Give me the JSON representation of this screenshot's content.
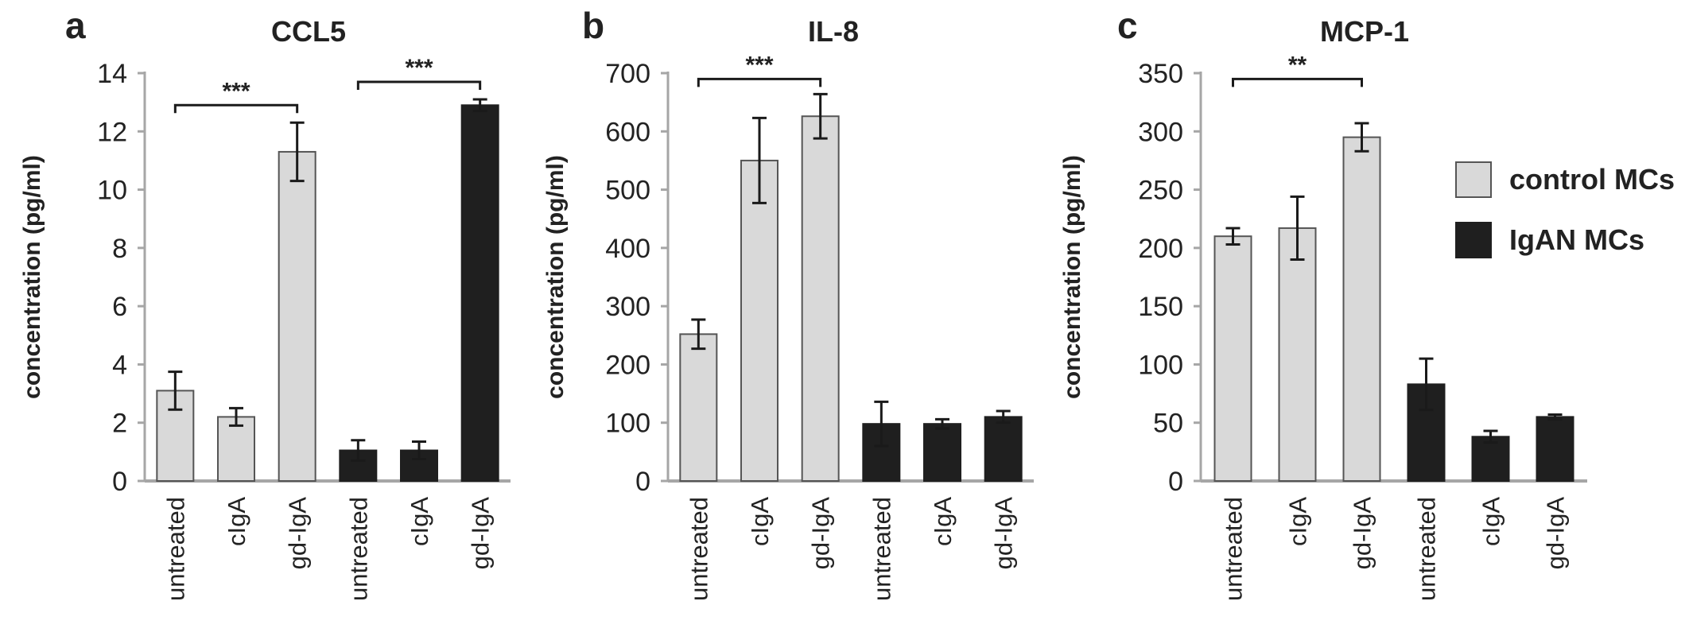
{
  "chart_data": [
    {
      "type": "bar",
      "panel": "a",
      "title": "CCL5",
      "ylabel": "concentration (pg/ml)",
      "ylim": [
        0,
        14
      ],
      "yticks": [
        0,
        2,
        4,
        6,
        8,
        10,
        12,
        14
      ],
      "categories": [
        "untreated",
        "cIgA",
        "gd-IgA",
        "untreated",
        "cIgA",
        "gd-IgA"
      ],
      "groups": [
        "control",
        "control",
        "control",
        "IgAN",
        "IgAN",
        "IgAN"
      ],
      "values": [
        3.1,
        2.2,
        11.3,
        1.05,
        1.05,
        12.9
      ],
      "errors": [
        0.65,
        0.3,
        1.0,
        0.35,
        0.3,
        0.2
      ],
      "significance": [
        {
          "from": 0,
          "to": 2,
          "label": "***",
          "y": 12.9
        },
        {
          "from": 3,
          "to": 5,
          "label": "***",
          "y": 13.7
        }
      ]
    },
    {
      "type": "bar",
      "panel": "b",
      "title": "IL-8",
      "ylabel": "concentration (pg/ml)",
      "ylim": [
        0,
        700
      ],
      "yticks": [
        0,
        100,
        200,
        300,
        400,
        500,
        600,
        700
      ],
      "categories": [
        "untreated",
        "cIgA",
        "gd-IgA",
        "untreated",
        "cIgA",
        "gd-IgA"
      ],
      "groups": [
        "control",
        "control",
        "control",
        "IgAN",
        "IgAN",
        "IgAN"
      ],
      "values": [
        252,
        550,
        626,
        98,
        98,
        110
      ],
      "errors": [
        25,
        73,
        38,
        38,
        8,
        10
      ],
      "significance": [
        {
          "from": 0,
          "to": 2,
          "label": "***",
          "y": 690
        }
      ]
    },
    {
      "type": "bar",
      "panel": "c",
      "title": "MCP-1",
      "ylabel": "concentration (pg/ml)",
      "ylim": [
        0,
        350
      ],
      "yticks": [
        0,
        50,
        100,
        150,
        200,
        250,
        300,
        350
      ],
      "categories": [
        "untreated",
        "cIgA",
        "gd-IgA",
        "untreated",
        "cIgA",
        "gd-IgA"
      ],
      "groups": [
        "control",
        "control",
        "control",
        "IgAN",
        "IgAN",
        "IgAN"
      ],
      "values": [
        210,
        217,
        295,
        83,
        38,
        55
      ],
      "errors": [
        7,
        27,
        12,
        22,
        5,
        2
      ],
      "significance": [
        {
          "from": 0,
          "to": 2,
          "label": "**",
          "y": 345
        }
      ]
    }
  ],
  "legend": {
    "position": "right",
    "items": [
      {
        "label": "control MCs",
        "color": "#d9d9d9"
      },
      {
        "label": "IgAN MCs",
        "color": "#1f1f1f"
      }
    ]
  },
  "colors": {
    "control": "#d9d9d9",
    "IgAN": "#1f1f1f",
    "axis": "#a6a6a6",
    "ink": "#222222"
  }
}
